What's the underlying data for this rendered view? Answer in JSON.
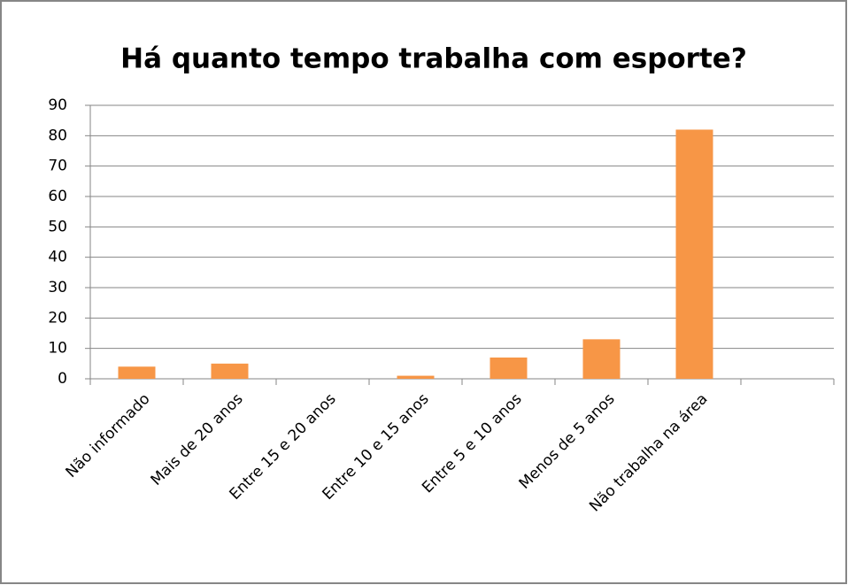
{
  "chart_data": {
    "type": "bar",
    "title": "Há quanto tempo trabalha com esporte?",
    "categories": [
      "Não informado",
      "Mais de 20 anos",
      "Entre 15 e 20 anos",
      "Entre 10 e 15 anos",
      "Entre 5 e 10 anos",
      "Menos de 5 anos",
      "Não trabalha na área",
      null
    ],
    "values": [
      4,
      5,
      0,
      1,
      7,
      13,
      82,
      null
    ],
    "color": "#f79646",
    "ylim": [
      0,
      90
    ],
    "yticks": [
      0,
      10,
      20,
      30,
      40,
      50,
      60,
      70,
      80,
      90
    ],
    "grid": true
  }
}
